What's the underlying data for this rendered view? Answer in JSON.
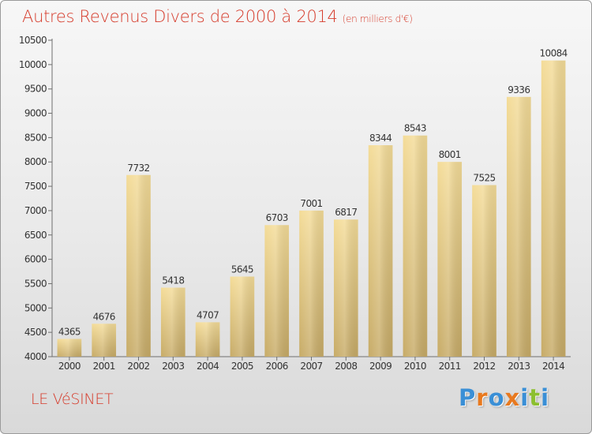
{
  "header": {
    "title": "Autres Revenus Divers de 2000 à 2014",
    "unit": "(en milliers d'€)"
  },
  "footer": {
    "commune": "LE VéSINET",
    "logo": "Proxiti",
    "logo_colors": [
      "#3a8fd6",
      "#e8791f",
      "#3a8fd6",
      "#e8791f",
      "#3a8fd6",
      "#8cbf2f",
      "#3a8fd6"
    ]
  },
  "colors": {
    "bar_top": "#f4dc98",
    "bar_bottom": "#c7ab67",
    "accent": "#d63c2c",
    "text": "#333333"
  },
  "chart_data": {
    "type": "bar",
    "title": "Autres Revenus Divers de 2000 à 2014",
    "subtitle": "(en milliers d'€)",
    "xlabel": "",
    "ylabel": "",
    "categories": [
      "2000",
      "2001",
      "2002",
      "2003",
      "2004",
      "2005",
      "2006",
      "2007",
      "2008",
      "2009",
      "2010",
      "2011",
      "2012",
      "2013",
      "2014"
    ],
    "values": [
      4365,
      4676,
      7732,
      5418,
      4707,
      5645,
      6703,
      7001,
      6817,
      8344,
      8543,
      8001,
      7525,
      9336,
      10084
    ],
    "ylim": [
      4000,
      10500
    ],
    "yticks": [
      4000,
      4500,
      5000,
      5500,
      6000,
      6500,
      7000,
      7500,
      8000,
      8500,
      9000,
      9500,
      10000,
      10500
    ],
    "grid": false,
    "legend": "none"
  }
}
